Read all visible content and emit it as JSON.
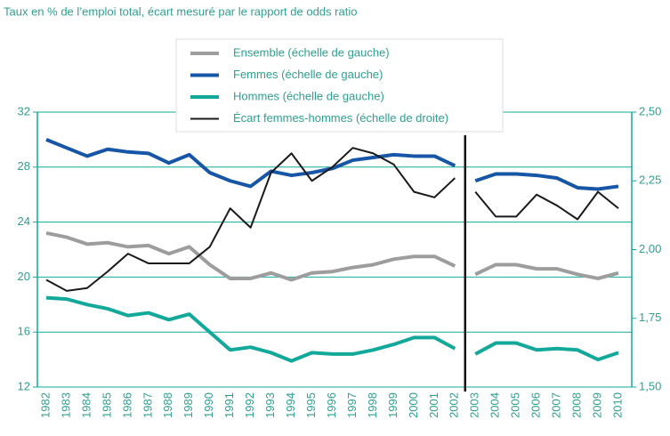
{
  "chart_data": {
    "type": "line",
    "title": "Taux en % de l’emploi total, écart mesuré par le rapport de odds ratio",
    "categories": [
      "1982",
      "1983",
      "1984",
      "1985",
      "1986",
      "1987",
      "1988",
      "1989",
      "1990",
      "1991",
      "1992",
      "1993",
      "1994",
      "1995",
      "1996",
      "1997",
      "1998",
      "1999",
      "2000",
      "2001",
      "2002",
      "2003",
      "2004",
      "2005",
      "2006",
      "2007",
      "2008",
      "2009",
      "2010"
    ],
    "series_break": "2002",
    "series": [
      {
        "name": "Ensemble (échelle de gauche)",
        "color": "#9d9d9d",
        "width": 4,
        "values": [
          23.2,
          22.9,
          22.4,
          22.5,
          22.2,
          22.3,
          21.7,
          22.2,
          20.9,
          19.9,
          19.9,
          20.3,
          19.8,
          20.3,
          20.4,
          20.7,
          20.9,
          21.3,
          21.5,
          21.5,
          20.8,
          20.2,
          20.9,
          20.9,
          20.6,
          20.6,
          20.2,
          19.9,
          20.3
        ]
      },
      {
        "name": "Femmes (échelle de gauche)",
        "color": "#1755a6",
        "width": 4,
        "values": [
          30.0,
          29.4,
          28.8,
          29.3,
          29.1,
          29.0,
          28.3,
          28.9,
          27.6,
          27.0,
          26.6,
          27.7,
          27.4,
          27.6,
          27.9,
          28.5,
          28.7,
          28.9,
          28.8,
          28.8,
          28.1,
          27.0,
          27.5,
          27.5,
          27.4,
          27.2,
          26.5,
          26.4,
          26.6
        ]
      },
      {
        "name": "Hommes (échelle de gauche)",
        "color": "#13a99a",
        "width": 4,
        "values": [
          18.5,
          18.4,
          18.0,
          17.7,
          17.2,
          17.4,
          16.9,
          17.3,
          16.0,
          14.7,
          14.9,
          14.5,
          13.9,
          14.5,
          14.4,
          14.4,
          14.7,
          15.1,
          15.6,
          15.6,
          14.8,
          14.4,
          15.2,
          15.2,
          14.7,
          14.8,
          14.7,
          14.0,
          14.5
        ]
      },
      {
        "name": "Écart femmes-hommes (échelle de droite)",
        "color": "#1a1a1a",
        "width": 2,
        "axis": "y2",
        "values": [
          1.89,
          1.85,
          1.86,
          1.92,
          1.985,
          1.95,
          1.95,
          1.95,
          2.01,
          2.15,
          2.08,
          2.28,
          2.35,
          2.25,
          2.3,
          2.37,
          2.35,
          2.31,
          2.21,
          2.19,
          2.26,
          2.21,
          2.12,
          2.12,
          2.2,
          2.16,
          2.11,
          2.21,
          2.15
        ]
      }
    ],
    "ylim": [
      12,
      32
    ],
    "yticks": [
      12,
      16,
      20,
      24,
      28,
      32
    ],
    "y2lim": [
      1.5,
      2.5
    ],
    "y2ticks": [
      {
        "value": 1.5,
        "label": "1,50"
      },
      {
        "value": 1.75,
        "label": "1,75"
      },
      {
        "value": 2.0,
        "label": "2,00"
      },
      {
        "value": 2.25,
        "label": "2,25"
      },
      {
        "value": 2.5,
        "label": "2,50"
      }
    ],
    "grid": true,
    "axis_color": "#13a99a"
  }
}
